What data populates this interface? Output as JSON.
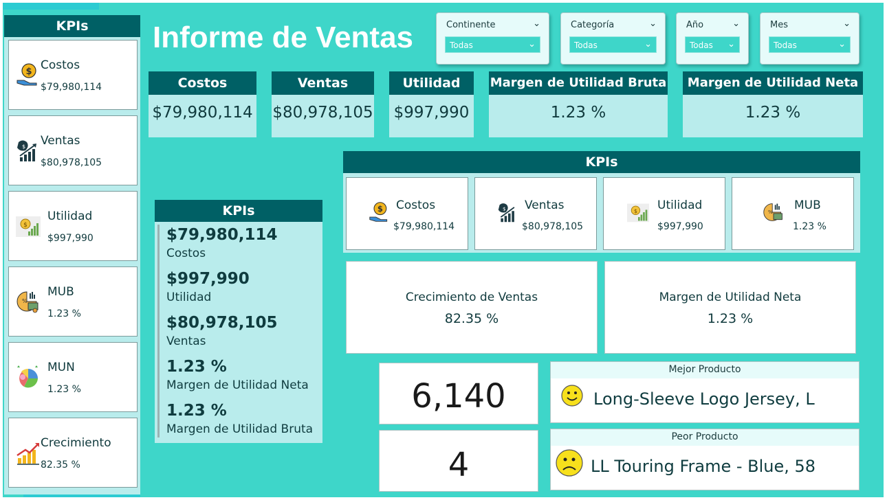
{
  "title": "Informe de Ventas",
  "colors": {
    "teal_bg": "#3ed6c9",
    "header": "#006065",
    "panel": "#b9ecec"
  },
  "left_kpis": {
    "header": "KPIs",
    "items": [
      {
        "label": "Costos",
        "value": "$79,980,114",
        "icon": "money-bag-hand-icon"
      },
      {
        "label": "Ventas",
        "value": "$80,978,105",
        "icon": "money-bag-growth-icon"
      },
      {
        "label": "Utilidad",
        "value": "$997,990",
        "icon": "profit-chart-icon"
      },
      {
        "label": "MUB",
        "value": "1.23 %",
        "icon": "margin-pie-icon"
      },
      {
        "label": "MUN",
        "value": "1.23 %",
        "icon": "margin-donut-icon"
      },
      {
        "label": "Crecimiento",
        "value": "82.35 %",
        "icon": "growth-chart-icon"
      }
    ]
  },
  "slicers": [
    {
      "label": "Continente",
      "value": "Todas"
    },
    {
      "label": "Categoría",
      "value": "Todas"
    },
    {
      "label": "Año",
      "value": "Todas"
    },
    {
      "label": "Mes",
      "value": "Todas"
    }
  ],
  "top_cards": [
    {
      "label": "Costos",
      "value": "$79,980,114"
    },
    {
      "label": "Ventas",
      "value": "$80,978,105"
    },
    {
      "label": "Utilidad",
      "value": "$997,990"
    },
    {
      "label": "Margen de Utilidad Bruta",
      "value": "1.23 %"
    },
    {
      "label": "Margen de Utilidad Neta",
      "value": "1.23 %"
    }
  ],
  "mid_kpis": {
    "header": "KPIs",
    "items": [
      {
        "value": "$79,980,114",
        "label": "Costos"
      },
      {
        "value": "$997,990",
        "label": "Utilidad"
      },
      {
        "value": "$80,978,105",
        "label": "Ventas"
      },
      {
        "value": "1.23 %",
        "label": "Margen de Utilidad Neta"
      },
      {
        "value": "1.23 %",
        "label": "Margen de Utilidad Bruta"
      }
    ]
  },
  "right_kpis": {
    "header": "KPIs",
    "items": [
      {
        "label": "Costos",
        "value": "$79,980,114"
      },
      {
        "label": "Ventas",
        "value": "$80,978,105"
      },
      {
        "label": "Utilidad",
        "value": "$997,990"
      },
      {
        "label": "MUB",
        "value": "1.23 %"
      }
    ]
  },
  "growth": {
    "label": "Crecimiento de Ventas",
    "value": "82.35 %"
  },
  "net_margin": {
    "label": "Margen de Utilidad Neta",
    "value": "1.23 %"
  },
  "best_count": "6,140",
  "worst_count": "4",
  "best_product": {
    "label": "Mejor Producto",
    "value": "Long-Sleeve Logo Jersey, L"
  },
  "worst_product": {
    "label": "Peor Producto",
    "value": "LL Touring Frame - Blue, 58"
  }
}
